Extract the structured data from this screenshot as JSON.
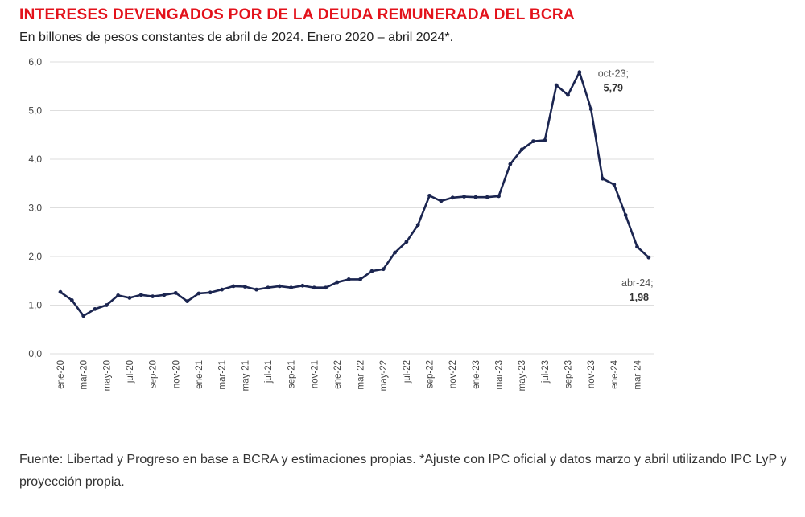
{
  "chart_data": {
    "type": "line",
    "title": "INTERESES DEVENGADOS POR DE LA DEUDA REMUNERADA DEL BCRA",
    "subtitle": "En billones de pesos constantes de abril de 2024. Enero 2020 – abril 2024*.",
    "xlabel": "",
    "ylabel": "",
    "ylim": [
      0,
      6
    ],
    "yticks": [
      "0,0",
      "1,0",
      "2,0",
      "3,0",
      "4,0",
      "5,0",
      "6,0"
    ],
    "grid": true,
    "color": "#1b2550",
    "xtick_labels": [
      "ene-20",
      "mar-20",
      "may-20",
      "jul-20",
      "sep-20",
      "nov-20",
      "ene-21",
      "mar-21",
      "may-21",
      "jul-21",
      "sep-21",
      "nov-21",
      "ene-22",
      "mar-22",
      "may-22",
      "jul-22",
      "sep-22",
      "nov-22",
      "ene-23",
      "mar-23",
      "may-23",
      "jul-23",
      "sep-23",
      "nov-23",
      "ene-24",
      "mar-24"
    ],
    "series": [
      {
        "name": "Intereses devengados",
        "values": [
          1.27,
          1.1,
          0.78,
          0.92,
          1.0,
          1.2,
          1.15,
          1.21,
          1.18,
          1.21,
          1.25,
          1.08,
          1.24,
          1.26,
          1.32,
          1.39,
          1.38,
          1.32,
          1.36,
          1.39,
          1.36,
          1.4,
          1.36,
          1.36,
          1.47,
          1.53,
          1.53,
          1.7,
          1.74,
          2.08,
          2.3,
          2.65,
          3.25,
          3.14,
          3.21,
          3.23,
          3.22,
          3.22,
          3.24,
          3.9,
          4.2,
          4.37,
          4.39,
          5.52,
          5.32,
          5.79,
          5.03,
          3.6,
          3.48,
          2.85,
          2.2,
          1.98
        ]
      }
    ],
    "annotations": [
      {
        "index": 45,
        "label": "oct-23;",
        "value": "5,79"
      },
      {
        "index": 51,
        "label": "abr-24;",
        "value": "1,98"
      }
    ]
  },
  "source": "Fuente: Libertad y Progreso en base a BCRA y estimaciones propias. *Ajuste con IPC oficial y datos marzo y abril utilizando IPC LyP y proyección propia."
}
